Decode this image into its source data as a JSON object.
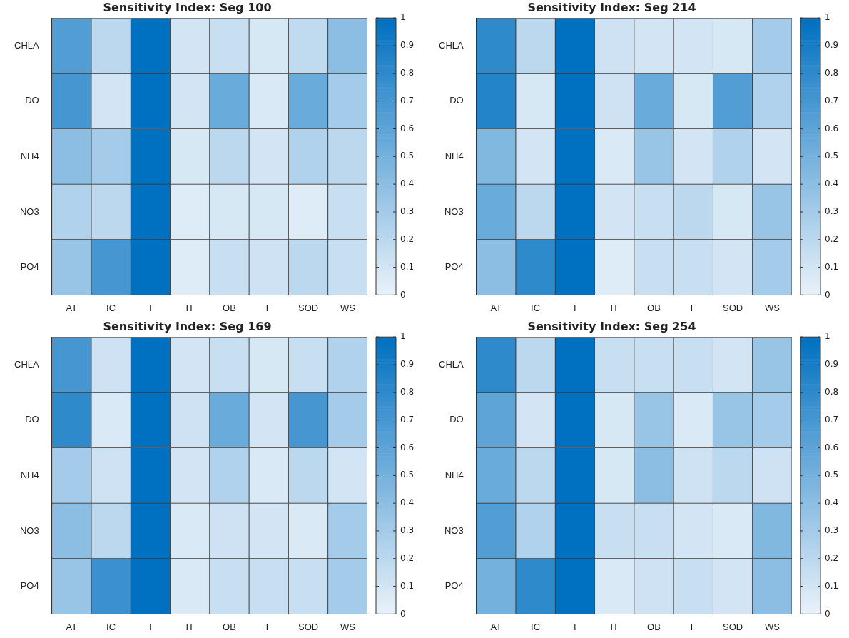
{
  "chart_data": [
    {
      "type": "heatmap",
      "title": "Sensitivity Index: Seg 100",
      "categories": [
        "AT",
        "IC",
        "I",
        "IT",
        "OB",
        "F",
        "SOD",
        "WS"
      ],
      "y_categories": [
        "CHLA",
        "DO",
        "NH4",
        "NO3",
        "PO4"
      ],
      "clim": [
        0,
        1
      ],
      "cticks": [
        0,
        0.1,
        0.2,
        0.3,
        0.4,
        0.5,
        0.6,
        0.7,
        0.8,
        0.9,
        1
      ],
      "cells": [
        [
          0.65,
          0.2,
          1,
          0.1,
          0.15,
          0.08,
          0.18,
          0.4
        ],
        [
          0.7,
          0.1,
          1,
          0.1,
          0.55,
          0.07,
          0.55,
          0.3
        ],
        [
          0.4,
          0.3,
          1,
          0.08,
          0.2,
          0.1,
          0.25,
          0.2
        ],
        [
          0.25,
          0.2,
          1,
          0.05,
          0.08,
          0.08,
          0.05,
          0.15
        ],
        [
          0.35,
          0.7,
          1,
          0.05,
          0.15,
          0.12,
          0.2,
          0.15
        ]
      ]
    },
    {
      "type": "heatmap",
      "title": "Sensitivity Index: Seg 214",
      "categories": [
        "AT",
        "IC",
        "I",
        "IT",
        "OB",
        "F",
        "SOD",
        "WS"
      ],
      "y_categories": [
        "CHLA",
        "DO",
        "NH4",
        "NO3",
        "PO4"
      ],
      "clim": [
        0,
        1
      ],
      "cticks": [
        0,
        0.1,
        0.2,
        0.3,
        0.4,
        0.5,
        0.6,
        0.7,
        0.8,
        0.9,
        1
      ],
      "cells": [
        [
          0.8,
          0.2,
          1,
          0.12,
          0.1,
          0.1,
          0.08,
          0.3
        ],
        [
          0.85,
          0.08,
          1,
          0.12,
          0.55,
          0.08,
          0.65,
          0.25
        ],
        [
          0.45,
          0.1,
          1,
          0.07,
          0.35,
          0.1,
          0.25,
          0.1
        ],
        [
          0.55,
          0.2,
          1,
          0.1,
          0.15,
          0.2,
          0.08,
          0.35
        ],
        [
          0.4,
          0.8,
          1,
          0.05,
          0.15,
          0.15,
          0.1,
          0.3
        ]
      ]
    },
    {
      "type": "heatmap",
      "title": "Sensitivity Index: Seg 169",
      "categories": [
        "AT",
        "IC",
        "I",
        "IT",
        "OB",
        "F",
        "SOD",
        "WS"
      ],
      "y_categories": [
        "CHLA",
        "DO",
        "NH4",
        "NO3",
        "PO4"
      ],
      "clim": [
        0,
        1
      ],
      "cticks": [
        0,
        0.1,
        0.2,
        0.3,
        0.4,
        0.5,
        0.6,
        0.7,
        0.8,
        0.9,
        1
      ],
      "cells": [
        [
          0.7,
          0.12,
          1,
          0.1,
          0.15,
          0.08,
          0.15,
          0.25
        ],
        [
          0.8,
          0.07,
          1,
          0.12,
          0.55,
          0.1,
          0.7,
          0.3
        ],
        [
          0.3,
          0.12,
          1,
          0.1,
          0.25,
          0.07,
          0.2,
          0.1
        ],
        [
          0.4,
          0.2,
          1,
          0.07,
          0.12,
          0.1,
          0.07,
          0.3
        ],
        [
          0.35,
          0.75,
          1,
          0.07,
          0.15,
          0.15,
          0.15,
          0.3
        ]
      ]
    },
    {
      "type": "heatmap",
      "title": "Sensitivity Index: Seg 254",
      "categories": [
        "AT",
        "IC",
        "I",
        "IT",
        "OB",
        "F",
        "SOD",
        "WS"
      ],
      "y_categories": [
        "CHLA",
        "DO",
        "NH4",
        "NO3",
        "PO4"
      ],
      "clim": [
        0,
        1
      ],
      "cticks": [
        0,
        0.1,
        0.2,
        0.3,
        0.4,
        0.5,
        0.6,
        0.7,
        0.8,
        0.9,
        1
      ],
      "cells": [
        [
          0.8,
          0.2,
          1,
          0.15,
          0.15,
          0.15,
          0.1,
          0.35
        ],
        [
          0.6,
          0.1,
          1,
          0.08,
          0.35,
          0.07,
          0.35,
          0.3
        ],
        [
          0.55,
          0.2,
          1,
          0.08,
          0.4,
          0.12,
          0.2,
          0.12
        ],
        [
          0.65,
          0.25,
          1,
          0.15,
          0.15,
          0.1,
          0.07,
          0.45
        ],
        [
          0.5,
          0.8,
          1,
          0.07,
          0.12,
          0.15,
          0.1,
          0.4
        ]
      ]
    }
  ]
}
